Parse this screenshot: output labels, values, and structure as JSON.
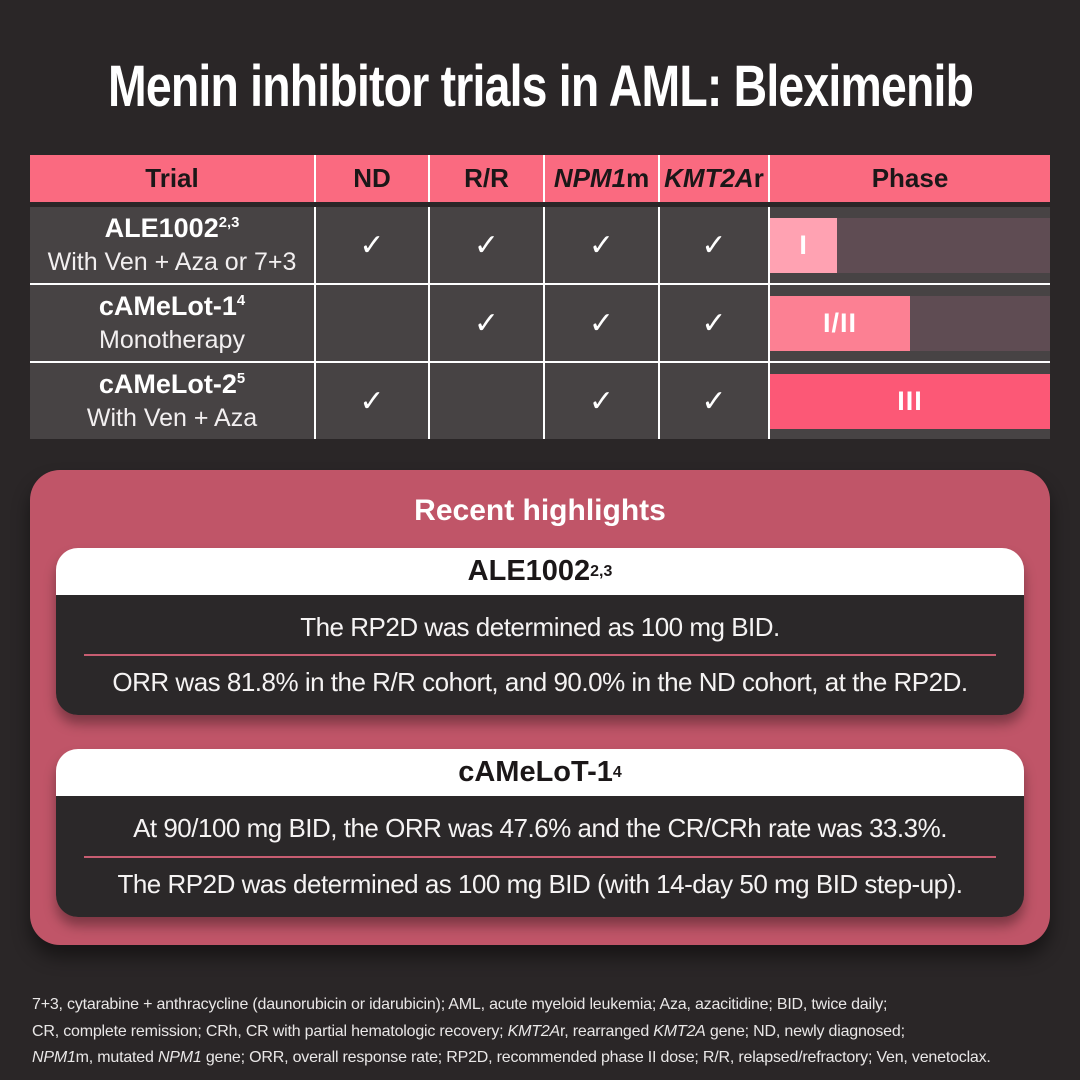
{
  "title": "Menin inhibitor trials in AML: Bleximenib",
  "colors": {
    "background": "#2a2627",
    "header_pink": "#fa6a80",
    "row_gray": "#474344",
    "phase_track": "#5f4c53",
    "phase_1": "#ffa2b2",
    "phase_1_2": "#fc8093",
    "phase_3": "#fc5876",
    "panel_rose": "#c05568",
    "card_dark": "#2b2829"
  },
  "table": {
    "columns": [
      [
        {
          "t": "Trial"
        }
      ],
      [
        {
          "t": "ND"
        }
      ],
      [
        {
          "t": "R/R"
        }
      ],
      [
        {
          "t": "NPM1",
          "i": true
        },
        {
          "t": "m"
        }
      ],
      [
        {
          "t": "KMT2A",
          "i": true
        },
        {
          "t": "r"
        }
      ],
      [
        {
          "t": "Phase"
        }
      ]
    ],
    "rows": [
      {
        "name": [
          {
            "t": "ALE1002"
          },
          {
            "t": "2,3",
            "sup": true
          }
        ],
        "subtitle": "With Ven + Aza or 7+3",
        "checks": {
          "nd": "✓",
          "rr": "✓",
          "npm1m": "✓",
          "kmt2ar": "✓"
        },
        "phase": {
          "label": "I",
          "fill_pct": 24,
          "fill_color": "#ffa2b2",
          "track_color": "#5f4c53"
        }
      },
      {
        "name": [
          {
            "t": "cAMeLot-1"
          },
          {
            "t": "4",
            "sup": true
          }
        ],
        "subtitle": "Monotherapy",
        "checks": {
          "nd": "",
          "rr": "✓",
          "npm1m": "✓",
          "kmt2ar": "✓"
        },
        "phase": {
          "label": "I/II",
          "fill_pct": 50,
          "fill_color": "#fc8093",
          "track_color": "#5f4c53"
        }
      },
      {
        "name": [
          {
            "t": "cAMeLot-2"
          },
          {
            "t": "5",
            "sup": true
          }
        ],
        "subtitle": "With Ven + Aza",
        "checks": {
          "nd": "✓",
          "rr": "",
          "npm1m": "✓",
          "kmt2ar": "✓"
        },
        "phase": {
          "label": "III",
          "fill_pct": 100,
          "fill_color": "#fc5876",
          "track_color": "#5f4c53"
        }
      }
    ]
  },
  "highlights": {
    "title": "Recent highlights",
    "cards": [
      {
        "header": [
          {
            "t": "ALE1002"
          },
          {
            "t": "2,3",
            "sup": true
          }
        ],
        "line1": "The RP2D was determined as 100 mg BID.",
        "line2": "ORR was 81.8% in the R/R cohort, and 90.0% in the ND cohort, at the RP2D."
      },
      {
        "header": [
          {
            "t": "cAMeLoT-1"
          },
          {
            "t": "4",
            "sup": true
          }
        ],
        "line1": "At 90/100 mg BID, the ORR was 47.6% and the CR/CRh rate was 33.3%.",
        "line2": "The RP2D was determined as 100 mg BID (with 14-day 50 mg BID step-up)."
      }
    ]
  },
  "footnote": {
    "lines": [
      [
        {
          "t": "7+3, cytarabine + anthracycline (daunorubicin or idarubicin); AML, acute myeloid leukemia; Aza, azacitidine; BID, twice daily;"
        }
      ],
      [
        {
          "t": "CR, complete remission; CRh, CR with partial hematologic recovery; "
        },
        {
          "t": "KMT2A",
          "i": true
        },
        {
          "t": "r, rearranged "
        },
        {
          "t": "KMT2A",
          "i": true
        },
        {
          "t": " gene; ND, newly diagnosed;"
        }
      ],
      [
        {
          "t": "NPM1",
          "i": true
        },
        {
          "t": "m, mutated "
        },
        {
          "t": "NPM1",
          "i": true
        },
        {
          "t": " gene; ORR, overall response rate; RP2D, recommended phase II dose; R/R, relapsed/refractory; Ven, venetoclax."
        }
      ]
    ]
  }
}
